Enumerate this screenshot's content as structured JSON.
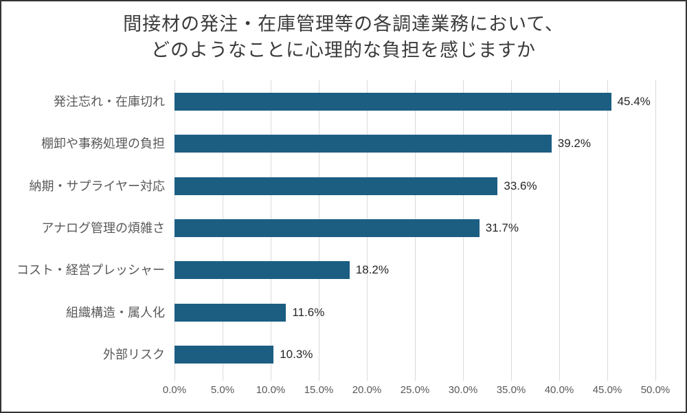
{
  "frame": {
    "background": "#ffffff",
    "border_color": "#333333"
  },
  "chart_data": {
    "type": "bar",
    "orientation": "horizontal",
    "title": "間接材の発注・在庫管理等の各調達業務において、どのようなことに心理的な負担を感じますか",
    "title_lines": [
      "間接材の発注・在庫管理等の各調達業務において、",
      "どのようなことに心理的な負担を感じますか"
    ],
    "categories": [
      "発注忘れ・在庫切れ",
      "棚卸や事務処理の負担",
      "納期・サプライヤー対応",
      "アナログ管理の煩雑さ",
      "コスト・経営プレッシャー",
      "組織構造・属人化",
      "外部リスク"
    ],
    "values": [
      45.4,
      39.2,
      33.6,
      31.7,
      18.2,
      11.6,
      10.3
    ],
    "data_labels": [
      "45.4%",
      "39.2%",
      "33.6%",
      "31.7%",
      "18.2%",
      "11.6%",
      "10.3%"
    ],
    "xlabel": "",
    "ylabel": "",
    "xlim": [
      0,
      50
    ],
    "x_tick_step": 5,
    "x_tick_labels": [
      "0.0%",
      "5.0%",
      "10.0%",
      "15.0%",
      "20.0%",
      "25.0%",
      "30.0%",
      "35.0%",
      "40.0%",
      "45.0%",
      "50.0%"
    ],
    "grid": true,
    "legend": false,
    "colors": {
      "bar": "#1b5e82",
      "gridline": "#d9d9d9",
      "title_text": "#3a3a3a",
      "category_text": "#595959",
      "value_text": "#262626",
      "tick_text": "#595959"
    }
  }
}
